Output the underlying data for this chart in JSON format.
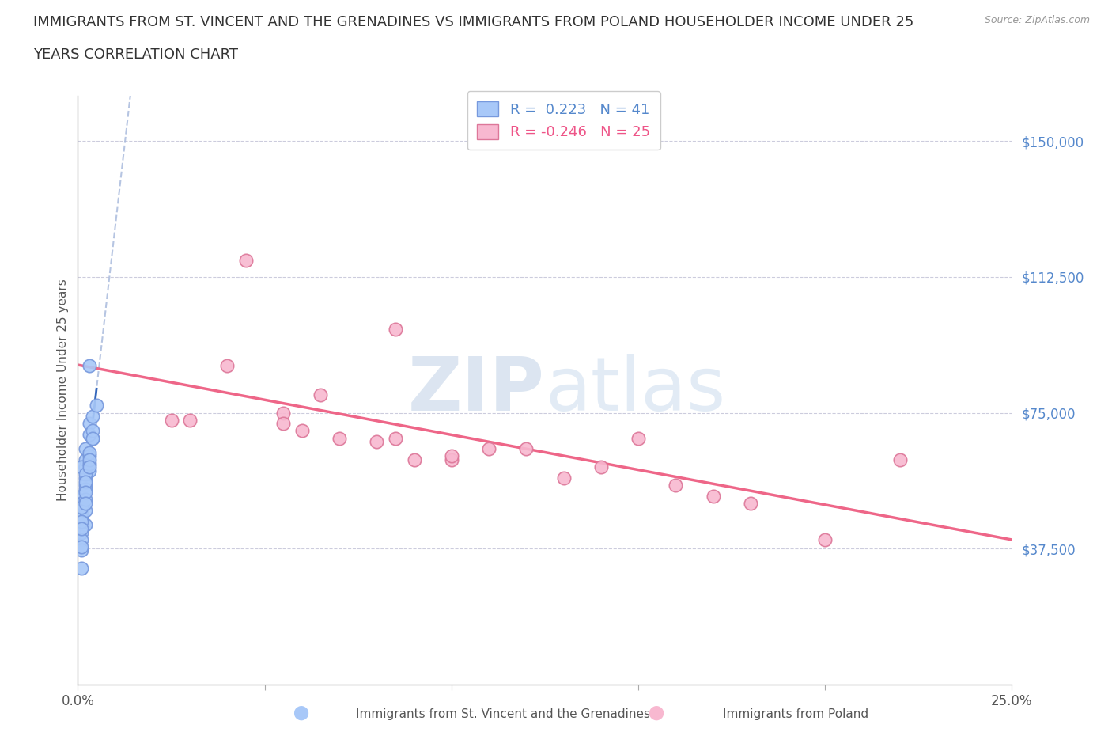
{
  "title_line1": "IMMIGRANTS FROM ST. VINCENT AND THE GRENADINES VS IMMIGRANTS FROM POLAND HOUSEHOLDER INCOME UNDER 25",
  "title_line2": "YEARS CORRELATION CHART",
  "source_text": "Source: ZipAtlas.com",
  "ylabel": "Householder Income Under 25 years",
  "xlim": [
    0.0,
    0.25
  ],
  "ylim": [
    0,
    162500
  ],
  "yticks": [
    37500,
    75000,
    112500,
    150000
  ],
  "ytick_labels": [
    "$37,500",
    "$75,000",
    "$112,500",
    "$150,000"
  ],
  "xticks": [
    0.0,
    0.05,
    0.1,
    0.15,
    0.2,
    0.25
  ],
  "xtick_labels": [
    "0.0%",
    "",
    "",
    "",
    "",
    "25.0%"
  ],
  "watermark_ZIP": "ZIP",
  "watermark_atlas": "atlas",
  "series1_color": "#a8c8f8",
  "series1_edge": "#7799dd",
  "series2_color": "#f8b8d0",
  "series2_edge": "#dd7799",
  "trendline1_color": "#aabbdd",
  "trendline2_color": "#ee6688",
  "legend1_label": "Immigrants from St. Vincent and the Grenadines",
  "legend2_label": "Immigrants from Poland",
  "R1": 0.223,
  "N1": 41,
  "R2": -0.246,
  "N2": 25,
  "series1_x": [
    0.002,
    0.003,
    0.001,
    0.004,
    0.002,
    0.001,
    0.003,
    0.002,
    0.001,
    0.002,
    0.001,
    0.002,
    0.003,
    0.001,
    0.002,
    0.001,
    0.003,
    0.002,
    0.001,
    0.004,
    0.002,
    0.001,
    0.003,
    0.001,
    0.002,
    0.004,
    0.001,
    0.003,
    0.002,
    0.001,
    0.005,
    0.002,
    0.001,
    0.003,
    0.004,
    0.001,
    0.002,
    0.003,
    0.002,
    0.001,
    0.003
  ],
  "series1_y": [
    60000,
    88000,
    52000,
    68000,
    62000,
    47000,
    72000,
    57000,
    50000,
    44000,
    60000,
    65000,
    69000,
    50000,
    55000,
    46000,
    59000,
    54000,
    42000,
    74000,
    48000,
    40000,
    63000,
    45000,
    58000,
    70000,
    37000,
    61000,
    56000,
    49000,
    77000,
    51000,
    38000,
    64000,
    68000,
    43000,
    53000,
    62000,
    50000,
    32000,
    60000
  ],
  "series2_x": [
    0.03,
    0.055,
    0.04,
    0.085,
    0.12,
    0.06,
    0.1,
    0.15,
    0.065,
    0.09,
    0.025,
    0.11,
    0.14,
    0.055,
    0.08,
    0.16,
    0.045,
    0.1,
    0.13,
    0.07,
    0.18,
    0.2,
    0.085,
    0.17,
    0.22
  ],
  "series2_y": [
    73000,
    75000,
    88000,
    68000,
    65000,
    70000,
    62000,
    68000,
    80000,
    62000,
    73000,
    65000,
    60000,
    72000,
    67000,
    55000,
    117000,
    63000,
    57000,
    68000,
    50000,
    40000,
    98000,
    52000,
    62000
  ],
  "blue_line_x": [
    0.0,
    0.04
  ],
  "blue_line_y": [
    55000,
    78000
  ]
}
